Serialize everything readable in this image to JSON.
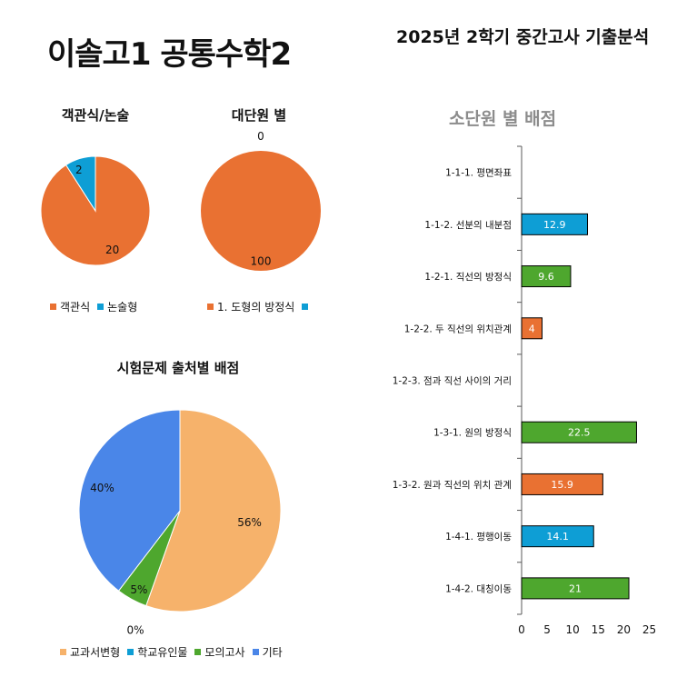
{
  "header": {
    "title": "이솔고1 공통수학2",
    "subtitle": "2025년 2학기 중간고사 기출분석"
  },
  "colors": {
    "orange": "#E97132",
    "blue": "#0E9ED5",
    "green": "#4EA72E",
    "peach": "#F6B26B",
    "cornflower": "#4A86E8"
  },
  "chart_data": [
    {
      "id": "question-type",
      "type": "pie",
      "title": "객관식/논술",
      "labels": [
        "객관식",
        "논술형"
      ],
      "values": [
        20,
        2
      ],
      "data_labels": [
        "20",
        "2"
      ],
      "colors": [
        "#E97132",
        "#0E9ED5"
      ],
      "legend_position": "bottom"
    },
    {
      "id": "major-unit",
      "type": "pie",
      "title": "대단원 별",
      "labels": [
        "1. 도형의 방정식",
        ""
      ],
      "values": [
        100,
        0
      ],
      "data_labels": [
        "100",
        "0"
      ],
      "colors": [
        "#E97132",
        "#0E9ED5"
      ],
      "legend_position": "bottom"
    },
    {
      "id": "question-source",
      "type": "pie",
      "title": "시험문제 출처별 배점",
      "labels": [
        "교과서변형",
        "학교유인물",
        "모의고사",
        "기타"
      ],
      "values": [
        56,
        0,
        5,
        40
      ],
      "data_labels": [
        "56%",
        "0%",
        "5%",
        "40%"
      ],
      "colors": [
        "#F6B26B",
        "#0E9ED5",
        "#4EA72E",
        "#4A86E8"
      ],
      "legend_position": "bottom"
    },
    {
      "id": "sub-unit",
      "type": "bar",
      "orientation": "horizontal",
      "title": "소단원 별 배점",
      "categories": [
        "1-1-1. 평면좌표",
        "1-1-2. 선분의 내분점",
        "1-2-1. 직선의 방정식",
        "1-2-2. 두 직선의 위치관계",
        "1-2-3. 점과 직선 사이의 거리",
        "1-3-1. 원의 방정식",
        "1-3-2. 원과 직선의 위치 관계",
        "1-4-1. 평행이동",
        "1-4-2. 대칭이동"
      ],
      "values": [
        0,
        12.9,
        9.6,
        4,
        0,
        22.5,
        15.9,
        14.1,
        21
      ],
      "data_labels": [
        "",
        "12.9",
        "9.6",
        "4",
        "",
        "22.5",
        "15.9",
        "14.1",
        "21"
      ],
      "colors": [
        "#0E9ED5",
        "#0E9ED5",
        "#4EA72E",
        "#E97132",
        "#0E9ED5",
        "#4EA72E",
        "#E97132",
        "#0E9ED5",
        "#4EA72E"
      ],
      "xlim": [
        0,
        25
      ],
      "x_ticks": [
        0,
        5,
        10,
        15,
        20,
        25
      ],
      "grid": false,
      "legend": false
    }
  ]
}
